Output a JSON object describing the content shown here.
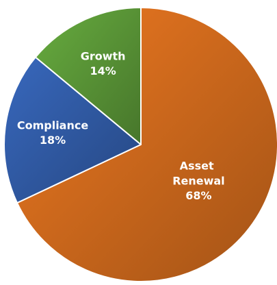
{
  "chart_data": {
    "type": "pie",
    "categories": [
      "Asset Renewal",
      "Compliance",
      "Growth"
    ],
    "values": [
      68,
      18,
      14
    ],
    "value_labels": [
      "68%",
      "18%",
      "14%"
    ],
    "colors": [
      "#e3731f",
      "#3563b4",
      "#62a43c"
    ]
  }
}
